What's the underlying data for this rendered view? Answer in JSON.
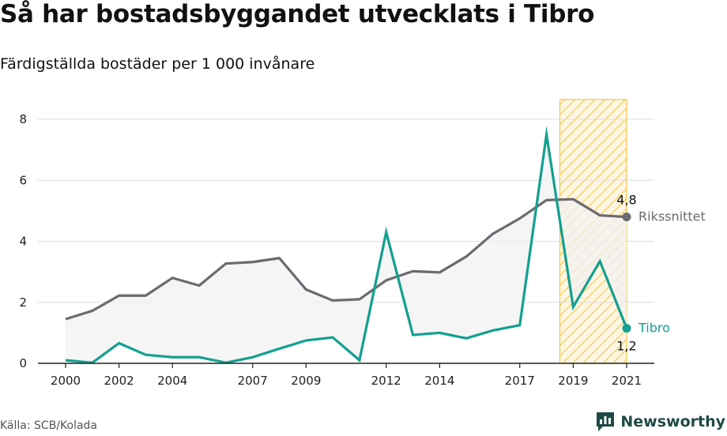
{
  "title": "Så har bostadsbyggandet utvecklats i Tibro",
  "subtitle": "Färdigställda bostäder per 1 000 invånare",
  "source": "Källa: SCB/Kolada",
  "brand": "Newsworthy",
  "colors": {
    "tibro": "#13a090",
    "riket": "#6b6a70",
    "grid": "#dddddd",
    "highlight": "#f5c64a",
    "area": "#f1f1f3",
    "brand": "#1f4a45"
  },
  "chart_data": {
    "type": "line",
    "x": [
      2000,
      2001,
      2002,
      2003,
      2004,
      2005,
      2006,
      2007,
      2008,
      2009,
      2010,
      2011,
      2012,
      2013,
      2014,
      2015,
      2016,
      2017,
      2018,
      2019,
      2020,
      2021
    ],
    "ylim": [
      0,
      8
    ],
    "yticks": [
      0,
      2,
      4,
      6,
      8
    ],
    "ytick_labels": [
      "0",
      "2",
      "4",
      "6",
      "8"
    ],
    "xticks": [
      2000,
      2002,
      2004,
      2007,
      2009,
      2012,
      2014,
      2017,
      2019,
      2021
    ],
    "xtick_labels": [
      "2000",
      "2002",
      "2004",
      "2007",
      "2009",
      "2012",
      "2014",
      "2017",
      "2019",
      "2021"
    ],
    "grid": true,
    "highlight_range": [
      2018.5,
      2021
    ],
    "series": [
      {
        "name": "Rikssnittet",
        "key": "riket",
        "values": [
          1.45,
          1.72,
          2.22,
          2.22,
          2.8,
          2.55,
          3.27,
          3.32,
          3.45,
          2.42,
          2.06,
          2.1,
          2.72,
          3.02,
          2.98,
          3.5,
          4.25,
          4.75,
          5.35,
          5.38,
          4.85,
          4.8
        ],
        "end_label": "4,8"
      },
      {
        "name": "Tibro",
        "key": "tibro",
        "values": [
          0.1,
          0.02,
          0.66,
          0.28,
          0.2,
          0.2,
          0.02,
          0.2,
          0.48,
          0.75,
          0.85,
          0.1,
          4.3,
          0.93,
          1.0,
          0.82,
          1.08,
          1.25,
          7.5,
          1.85,
          3.35,
          1.15
        ],
        "end_label": "1,2"
      }
    ]
  }
}
